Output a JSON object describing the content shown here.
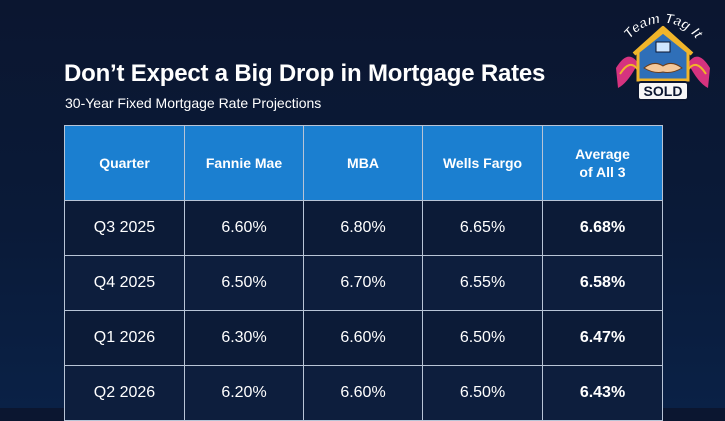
{
  "title": "Don’t Expect a Big Drop in Mortgage Rates",
  "subtitle": "30-Year Fixed Mortgage Rate Projections",
  "logo": {
    "text_top": "Team Tag It",
    "text_bottom": "SOLD",
    "colors": {
      "house_blue": "#2f6fb8",
      "gold": "#f1b52a",
      "magenta": "#d6337f"
    }
  },
  "table": {
    "headers": [
      "Quarter",
      "Fannie Mae",
      "MBA",
      "Wells Fargo",
      "Average",
      "of All 3"
    ],
    "rows": [
      {
        "quarter": "Q3 2025",
        "fannie": "6.60%",
        "mba": "6.80%",
        "wells": "6.65%",
        "avg": "6.68%"
      },
      {
        "quarter": "Q4 2025",
        "fannie": "6.50%",
        "mba": "6.70%",
        "wells": "6.55%",
        "avg": "6.58%"
      },
      {
        "quarter": "Q1 2026",
        "fannie": "6.30%",
        "mba": "6.60%",
        "wells": "6.50%",
        "avg": "6.47%"
      },
      {
        "quarter": "Q2 2026",
        "fannie": "6.20%",
        "mba": "6.60%",
        "wells": "6.50%",
        "avg": "6.43%"
      }
    ]
  },
  "colors": {
    "header_bg": "#1b7fd0",
    "body_bg": "#0d1e3d",
    "page_bg": "#0b1630"
  }
}
